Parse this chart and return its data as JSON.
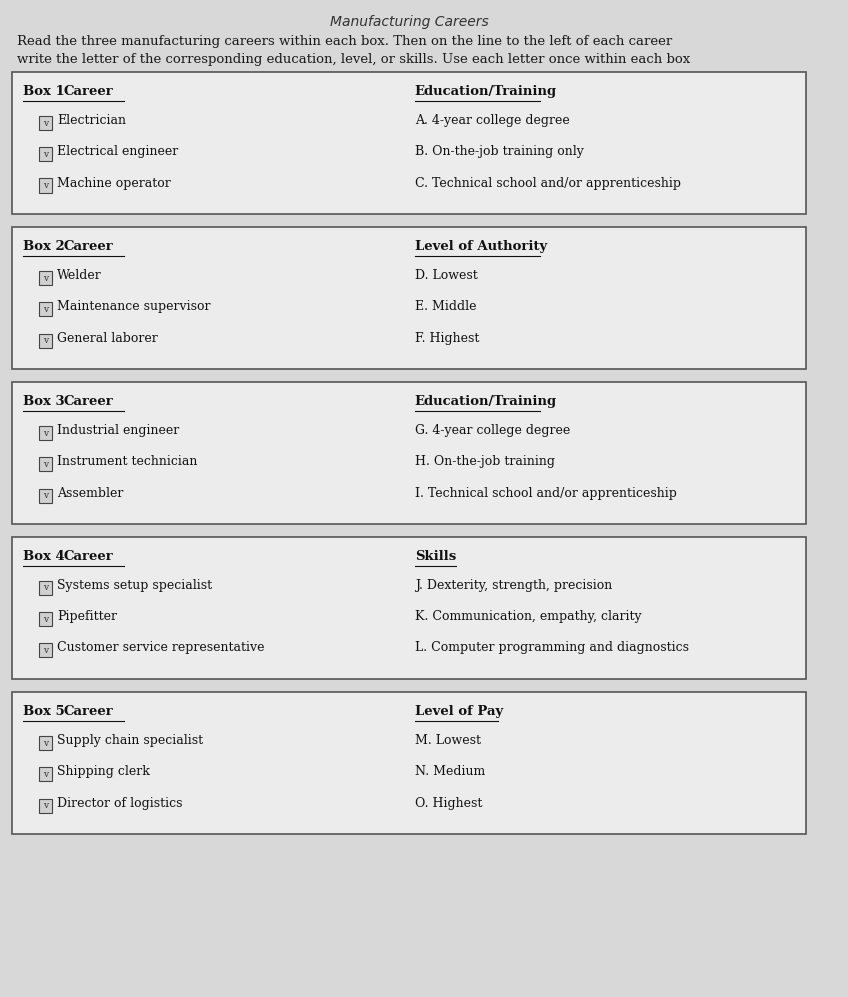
{
  "title_line1": "Read the three manufacturing careers within each box. Then on the line to the left of each career",
  "title_line2": "write the letter of the corresponding education, level, or skills. Use each letter once within each box",
  "page_title": "Manufacturing Careers",
  "bg_color": "#d8d8d8",
  "box_bg": "#e8e8e8",
  "boxes": [
    {
      "label": "Box 1",
      "col1_header": "Career",
      "col2_header": "Education/Training",
      "careers": [
        "Electrician",
        "Electrical engineer",
        "Machine operator"
      ],
      "options": [
        "A. 4-year college degree",
        "B. On-the-job training only",
        "C. Technical school and/or apprenticeship"
      ]
    },
    {
      "label": "Box 2",
      "col1_header": "Career",
      "col2_header": "Level of Authority",
      "careers": [
        "Welder",
        "Maintenance supervisor",
        "General laborer"
      ],
      "options": [
        "D. Lowest",
        "E. Middle",
        "F. Highest"
      ]
    },
    {
      "label": "Box 3",
      "col1_header": "Career",
      "col2_header": "Education/Training",
      "careers": [
        "Industrial engineer",
        "Instrument technician",
        "Assembler"
      ],
      "options": [
        "G. 4-year college degree",
        "H. On-the-job training",
        "I. Technical school and/or apprenticeship"
      ]
    },
    {
      "label": "Box 4",
      "col1_header": "Career",
      "col2_header": "Skills",
      "careers": [
        "Systems setup specialist",
        "Pipefitter",
        "Customer service representative"
      ],
      "options": [
        "J. Dexterity, strength, precision",
        "K. Communication, empathy, clarity",
        "L. Computer programming and diagnostics"
      ]
    },
    {
      "label": "Box 5",
      "col1_header": "Career",
      "col2_header": "Level of Pay",
      "careers": [
        "Supply chain specialist",
        "Shipping clerk",
        "Director of logistics"
      ],
      "options": [
        "M. Lowest",
        "N. Medium",
        "O. Highest"
      ]
    }
  ]
}
